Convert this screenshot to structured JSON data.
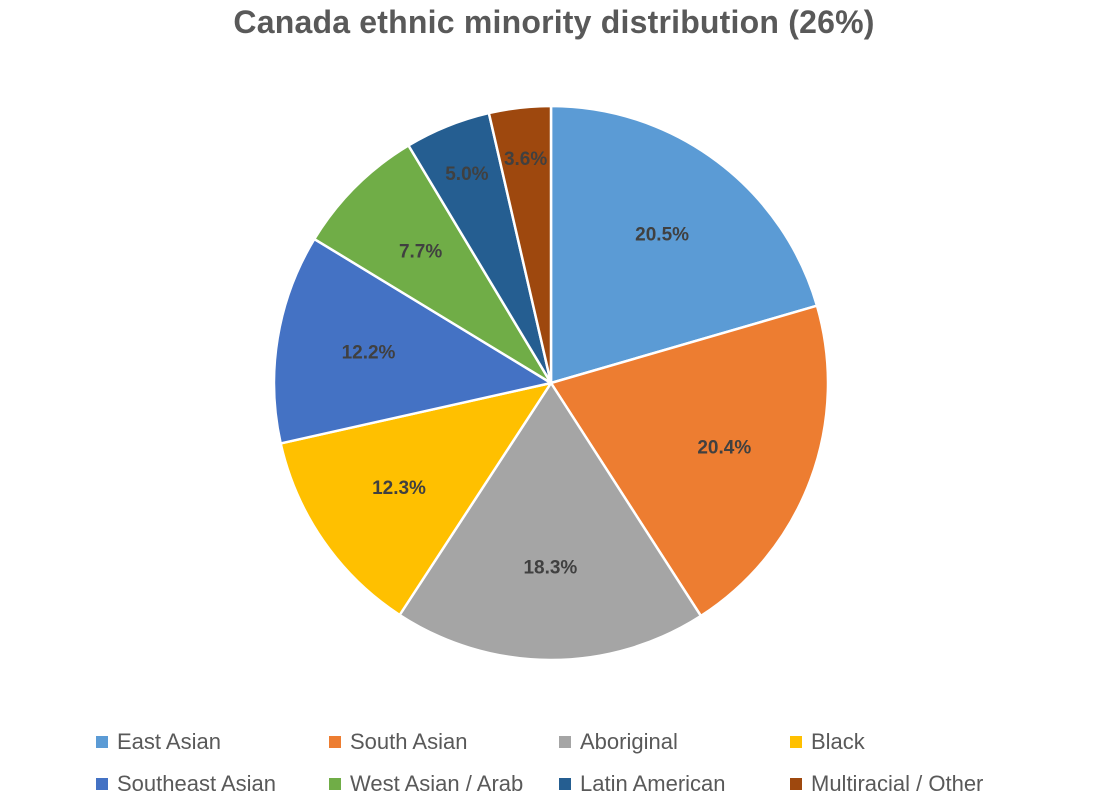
{
  "chart_data": {
    "type": "pie",
    "title": "Canada ethnic minority distribution (26%)",
    "slices": [
      {
        "label": "East Asian",
        "value": 20.5,
        "display": "20.5%",
        "color": "#5B9BD5"
      },
      {
        "label": "South Asian",
        "value": 20.4,
        "display": "20.4%",
        "color": "#ED7D31"
      },
      {
        "label": "Aboriginal",
        "value": 18.3,
        "display": "18.3%",
        "color": "#A5A5A5"
      },
      {
        "label": "Black",
        "value": 12.3,
        "display": "12.3%",
        "color": "#FFC000"
      },
      {
        "label": "Southeast Asian",
        "value": 12.2,
        "display": "12.2%",
        "color": "#4472C4"
      },
      {
        "label": "West Asian / Arab",
        "value": 7.7,
        "display": "7.7%",
        "color": "#70AD47"
      },
      {
        "label": "Latin American",
        "value": 5.0,
        "display": "5.0%",
        "color": "#255E91"
      },
      {
        "label": "Multiracial / Other",
        "value": 3.6,
        "display": "3.6%",
        "color": "#9E480E"
      }
    ],
    "legend_position": "bottom"
  }
}
